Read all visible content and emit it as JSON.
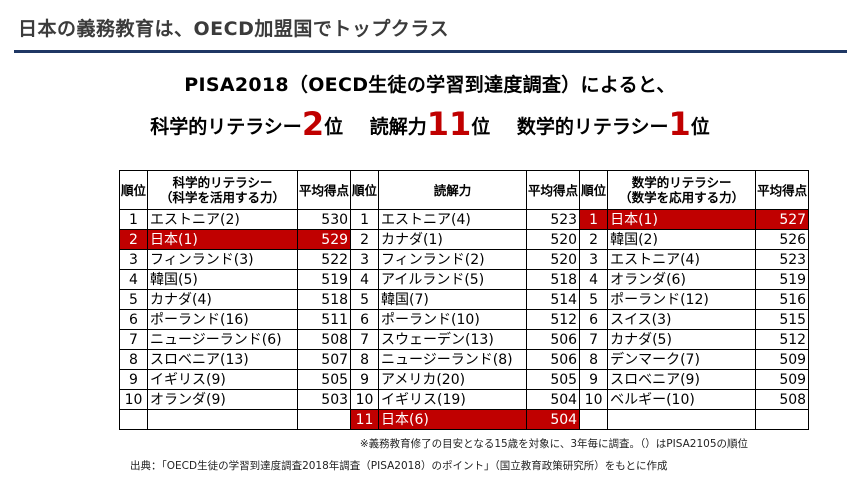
{
  "slide_title": "日本の義務教育は、OECD加盟国でトップクラス",
  "headline": "PISA2018（OECD生徒の学習到達度調査）によると、",
  "ranks": [
    {
      "label": "科学的リテラシー",
      "num": "2",
      "unit": "位"
    },
    {
      "label": "読解力",
      "num": "11",
      "unit": "位"
    },
    {
      "label": "数学的リテラシー",
      "num": "1",
      "unit": "位"
    }
  ],
  "table": {
    "headers": {
      "rank_a": "順位",
      "science": [
        "科学的リテラシー",
        "（科学を活用する力）"
      ],
      "score_a": "平均得点",
      "rank_b": "順位",
      "reading": "読解力",
      "score_b": "平均得点",
      "rank_c": "順位",
      "math": [
        "数学的リテラシー",
        "（数学を応用する力）"
      ],
      "score_c": "平均得点"
    },
    "rows": [
      {
        "s_rank": "1",
        "s_name": "エストニア(2)",
        "s_score": "530",
        "r_rank": "1",
        "r_name": "エストニア(4)",
        "r_score": "523",
        "m_rank": "1",
        "m_name": "日本(1)",
        "m_score": "527"
      },
      {
        "s_rank": "2",
        "s_name": "日本(1)",
        "s_score": "529",
        "r_rank": "2",
        "r_name": "カナダ(1)",
        "r_score": "520",
        "m_rank": "2",
        "m_name": "韓国(2)",
        "m_score": "526"
      },
      {
        "s_rank": "3",
        "s_name": "フィンランド(3)",
        "s_score": "522",
        "r_rank": "3",
        "r_name": "フィンランド(2)",
        "r_score": "520",
        "m_rank": "3",
        "m_name": "エストニア(4)",
        "m_score": "523"
      },
      {
        "s_rank": "4",
        "s_name": "韓国(5)",
        "s_score": "519",
        "r_rank": "4",
        "r_name": "アイルランド(5)",
        "r_score": "518",
        "m_rank": "4",
        "m_name": "オランダ(6)",
        "m_score": "519"
      },
      {
        "s_rank": "5",
        "s_name": "カナダ(4)",
        "s_score": "518",
        "r_rank": "5",
        "r_name": "韓国(7)",
        "r_score": "514",
        "m_rank": "5",
        "m_name": "ポーランド(12)",
        "m_score": "516"
      },
      {
        "s_rank": "6",
        "s_name": "ポーランド(16)",
        "s_score": "511",
        "r_rank": "6",
        "r_name": "ポーランド(10)",
        "r_score": "512",
        "m_rank": "6",
        "m_name": "スイス(3)",
        "m_score": "515"
      },
      {
        "s_rank": "7",
        "s_name": "ニュージーランド(6)",
        "s_score": "508",
        "r_rank": "7",
        "r_name": "スウェーデン(13)",
        "r_score": "506",
        "m_rank": "7",
        "m_name": "カナダ(5)",
        "m_score": "512"
      },
      {
        "s_rank": "8",
        "s_name": "スロベニア(13)",
        "s_score": "507",
        "r_rank": "8",
        "r_name": "ニュージーランド(8)",
        "r_score": "506",
        "m_rank": "8",
        "m_name": "デンマーク(7)",
        "m_score": "509"
      },
      {
        "s_rank": "9",
        "s_name": "イギリス(9)",
        "s_score": "505",
        "r_rank": "9",
        "r_name": "アメリカ(20)",
        "r_score": "505",
        "m_rank": "9",
        "m_name": "スロベニア(9)",
        "m_score": "509"
      },
      {
        "s_rank": "10",
        "s_name": "オランダ(9)",
        "s_score": "503",
        "r_rank": "10",
        "r_name": "イギリス(19)",
        "r_score": "504",
        "m_rank": "10",
        "m_name": "ベルギー(10)",
        "m_score": "508"
      }
    ],
    "extra_row": {
      "r_rank": "11",
      "r_name": "日本(6)",
      "r_score": "504"
    }
  },
  "note": "※義務教育修了の目安となる15歳を対象に、3年毎に調査。（）はPISA2105の順位",
  "source": "出典：「OECD生徒の学習到達度調査2018年調査（PISA2018）のポイント」（国立教育政策研究所）をもとに作成",
  "colors": {
    "highlight": "#c00000",
    "title_rule": "#1f3764"
  }
}
